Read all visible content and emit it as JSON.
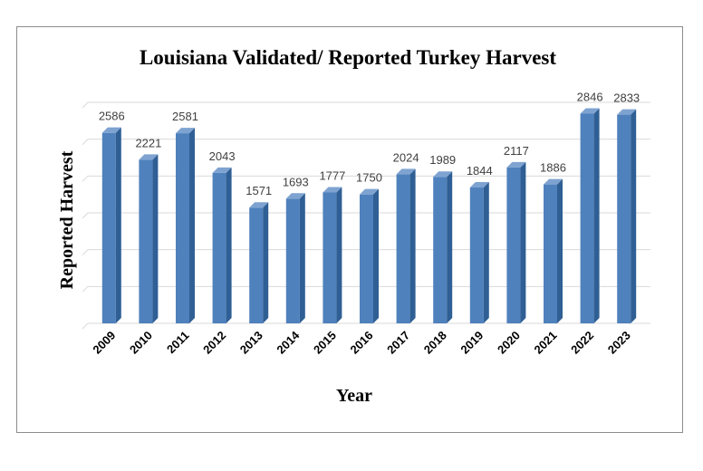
{
  "chart_data": {
    "type": "bar",
    "title": "Louisiana Validated/ Reported Turkey Harvest",
    "xlabel": "Year",
    "ylabel": "Reported Harvest",
    "categories": [
      "2009",
      "2010",
      "2011",
      "2012",
      "2013",
      "2014",
      "2015",
      "2016",
      "2017",
      "2018",
      "2019",
      "2020",
      "2021",
      "2022",
      "2023"
    ],
    "series": [
      {
        "values": [
          2586,
          2221,
          2581,
          2043,
          1571,
          1693,
          1777,
          1750,
          2024,
          1989,
          1844,
          2117,
          1886,
          2846,
          2833
        ]
      }
    ],
    "ylim": [
      0,
      3000
    ],
    "grid": true,
    "legend": "none",
    "bar_color": "#4f81bd",
    "bar_side_color": "#2f5f94",
    "bar_top_color": "#7ea3d1"
  }
}
